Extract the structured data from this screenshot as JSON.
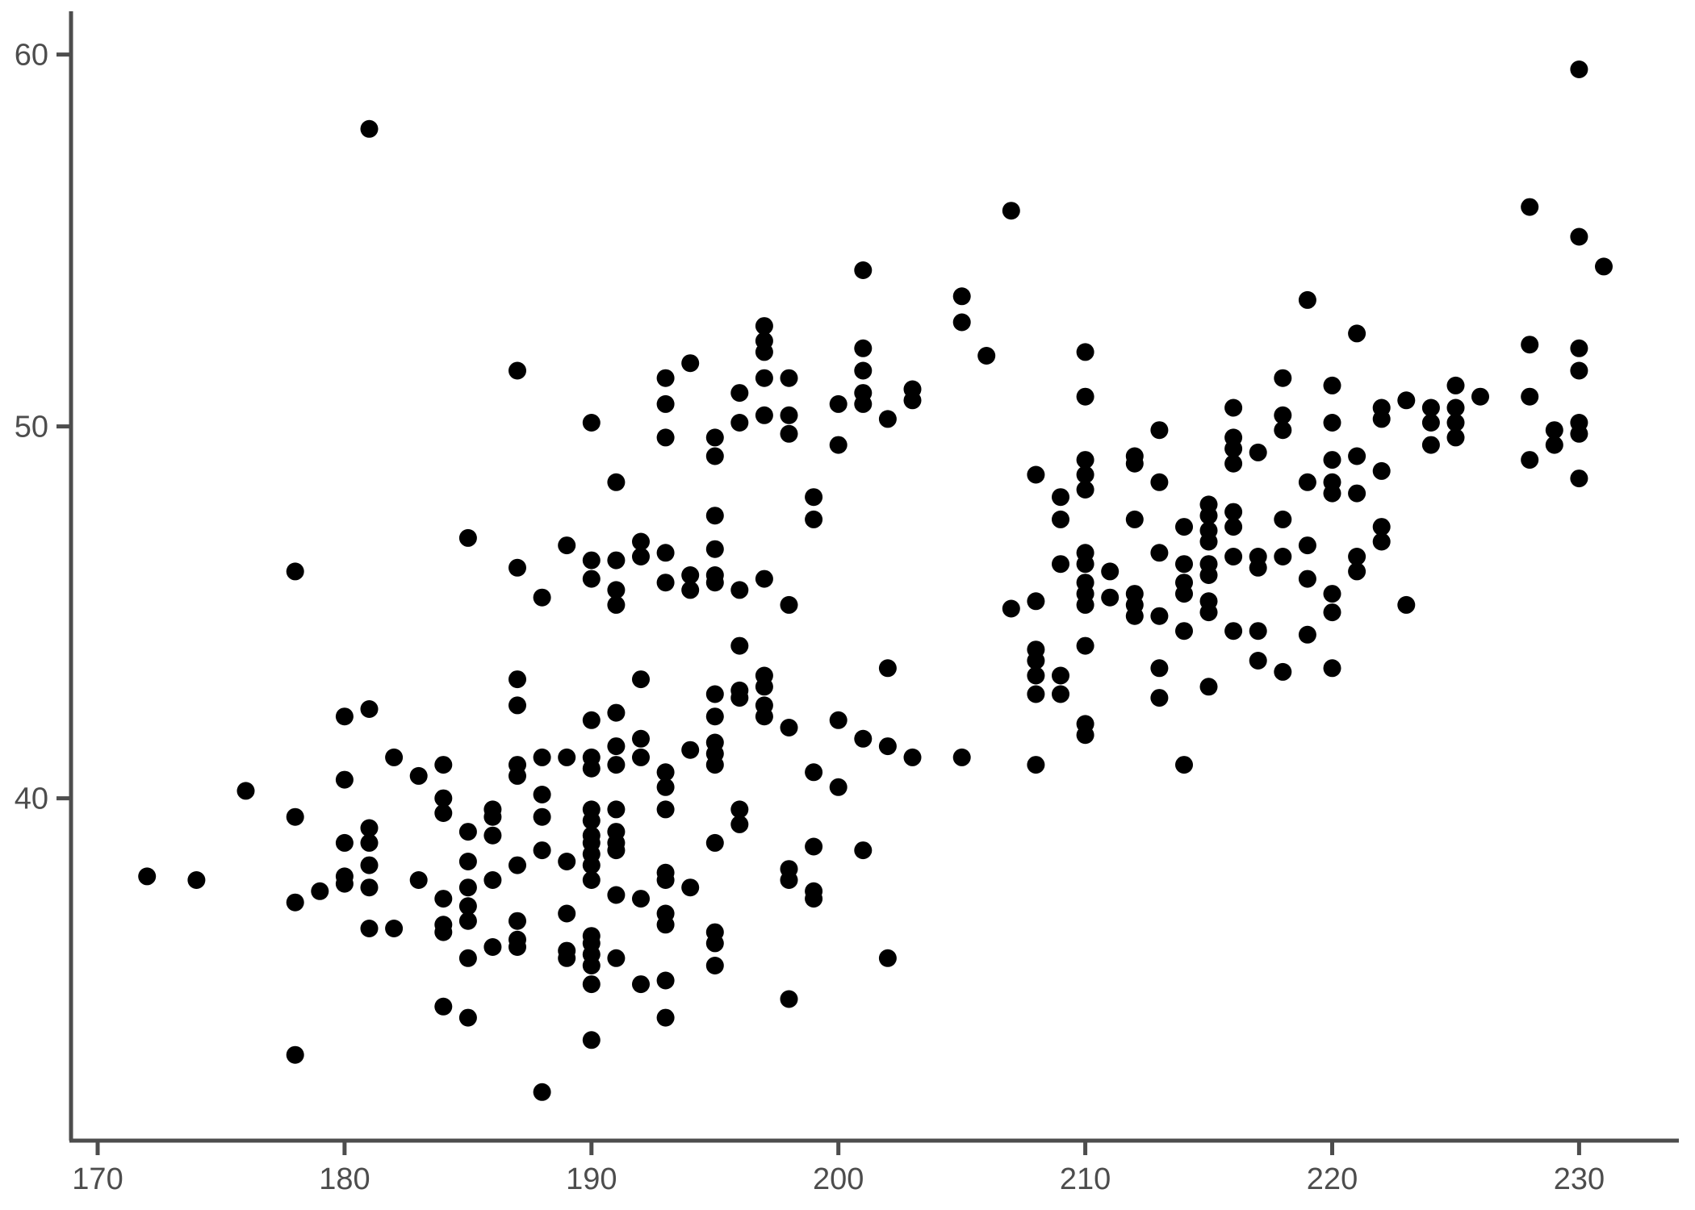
{
  "chart_data": {
    "type": "scatter",
    "title": "",
    "subtitle": "",
    "xlabel": "",
    "ylabel": "",
    "legend": null,
    "grid": false,
    "background_color": "#ffffff",
    "point_color": "#000000",
    "point_radius_px": 11,
    "axis_line_color": "#4d4d4d",
    "tick_label_color": "#4d4d4d",
    "x_axis": {
      "ticks": [
        170,
        180,
        190,
        200,
        210,
        220,
        230
      ],
      "range": [
        168.9,
        234.0
      ]
    },
    "y_axis": {
      "ticks": [
        40,
        50,
        60
      ],
      "range": [
        31.0,
        61.1
      ]
    },
    "points": [
      [
        172,
        37.9
      ],
      [
        174,
        37.8
      ],
      [
        176,
        40.2
      ],
      [
        178,
        46.1
      ],
      [
        178,
        39.5
      ],
      [
        178,
        37.2
      ],
      [
        178,
        33.1
      ],
      [
        179,
        37.5
      ],
      [
        180,
        42.2
      ],
      [
        180,
        40.5
      ],
      [
        180,
        38.8
      ],
      [
        180,
        37.9
      ],
      [
        180,
        37.7
      ],
      [
        181,
        58.0
      ],
      [
        181,
        42.4
      ],
      [
        181,
        39.2
      ],
      [
        181,
        38.8
      ],
      [
        181,
        38.2
      ],
      [
        181,
        37.6
      ],
      [
        181,
        36.5
      ],
      [
        182,
        41.1
      ],
      [
        182,
        36.5
      ],
      [
        183,
        40.6
      ],
      [
        183,
        37.8
      ],
      [
        184,
        40.9
      ],
      [
        184,
        40.0
      ],
      [
        184,
        39.6
      ],
      [
        184,
        37.3
      ],
      [
        184,
        36.6
      ],
      [
        184,
        36.4
      ],
      [
        184,
        34.4
      ],
      [
        185,
        47.0
      ],
      [
        185,
        39.1
      ],
      [
        185,
        38.3
      ],
      [
        185,
        37.6
      ],
      [
        185,
        37.1
      ],
      [
        185,
        36.7
      ],
      [
        185,
        35.7
      ],
      [
        185,
        34.1
      ],
      [
        186,
        39.7
      ],
      [
        186,
        39.5
      ],
      [
        186,
        39.0
      ],
      [
        186,
        37.8
      ],
      [
        186,
        36.0
      ],
      [
        187,
        51.5
      ],
      [
        187,
        46.2
      ],
      [
        187,
        43.2
      ],
      [
        187,
        42.5
      ],
      [
        187,
        40.9
      ],
      [
        187,
        40.6
      ],
      [
        187,
        38.2
      ],
      [
        187,
        36.7
      ],
      [
        187,
        36.2
      ],
      [
        187,
        36.0
      ],
      [
        188,
        45.4
      ],
      [
        188,
        41.1
      ],
      [
        188,
        40.1
      ],
      [
        188,
        39.5
      ],
      [
        188,
        38.6
      ],
      [
        188,
        32.1
      ],
      [
        189,
        46.8
      ],
      [
        189,
        41.1
      ],
      [
        189,
        38.3
      ],
      [
        189,
        36.9
      ],
      [
        189,
        35.9
      ],
      [
        189,
        35.7
      ],
      [
        190,
        50.1
      ],
      [
        190,
        46.4
      ],
      [
        190,
        45.9
      ],
      [
        190,
        42.1
      ],
      [
        190,
        41.1
      ],
      [
        190,
        40.8
      ],
      [
        190,
        39.7
      ],
      [
        190,
        39.4
      ],
      [
        190,
        39.0
      ],
      [
        190,
        38.8
      ],
      [
        190,
        38.5
      ],
      [
        190,
        38.2
      ],
      [
        190,
        37.8
      ],
      [
        190,
        36.3
      ],
      [
        190,
        36.1
      ],
      [
        190,
        35.8
      ],
      [
        190,
        35.5
      ],
      [
        190,
        35.0
      ],
      [
        190,
        33.5
      ],
      [
        191,
        48.5
      ],
      [
        191,
        46.4
      ],
      [
        191,
        45.6
      ],
      [
        191,
        45.2
      ],
      [
        191,
        42.3
      ],
      [
        191,
        41.4
      ],
      [
        191,
        40.9
      ],
      [
        191,
        39.7
      ],
      [
        191,
        39.1
      ],
      [
        191,
        38.8
      ],
      [
        191,
        38.6
      ],
      [
        191,
        37.4
      ],
      [
        191,
        35.7
      ],
      [
        192,
        46.9
      ],
      [
        192,
        46.5
      ],
      [
        192,
        43.2
      ],
      [
        192,
        41.6
      ],
      [
        192,
        41.1
      ],
      [
        192,
        37.3
      ],
      [
        192,
        35.0
      ],
      [
        193,
        51.3
      ],
      [
        193,
        50.6
      ],
      [
        193,
        49.7
      ],
      [
        193,
        46.6
      ],
      [
        193,
        45.8
      ],
      [
        193,
        40.7
      ],
      [
        193,
        40.3
      ],
      [
        193,
        39.7
      ],
      [
        193,
        38.0
      ],
      [
        193,
        37.8
      ],
      [
        193,
        36.9
      ],
      [
        193,
        36.6
      ],
      [
        193,
        35.1
      ],
      [
        193,
        34.1
      ],
      [
        194,
        51.7
      ],
      [
        194,
        46.0
      ],
      [
        194,
        45.6
      ],
      [
        194,
        41.3
      ],
      [
        194,
        37.6
      ],
      [
        195,
        49.7
      ],
      [
        195,
        49.2
      ],
      [
        195,
        47.6
      ],
      [
        195,
        46.7
      ],
      [
        195,
        46.0
      ],
      [
        195,
        45.8
      ],
      [
        195,
        42.8
      ],
      [
        195,
        42.2
      ],
      [
        195,
        41.5
      ],
      [
        195,
        41.2
      ],
      [
        195,
        40.9
      ],
      [
        195,
        38.8
      ],
      [
        195,
        36.4
      ],
      [
        195,
        36.1
      ],
      [
        195,
        35.5
      ],
      [
        196,
        50.9
      ],
      [
        196,
        50.1
      ],
      [
        196,
        45.6
      ],
      [
        196,
        44.1
      ],
      [
        196,
        42.9
      ],
      [
        196,
        42.7
      ],
      [
        196,
        39.7
      ],
      [
        196,
        39.3
      ],
      [
        197,
        52.7
      ],
      [
        197,
        52.3
      ],
      [
        197,
        52.0
      ],
      [
        197,
        51.3
      ],
      [
        197,
        50.3
      ],
      [
        197,
        45.9
      ],
      [
        197,
        43.3
      ],
      [
        197,
        43.0
      ],
      [
        197,
        42.5
      ],
      [
        197,
        42.2
      ],
      [
        198,
        51.3
      ],
      [
        198,
        50.3
      ],
      [
        198,
        49.8
      ],
      [
        198,
        45.2
      ],
      [
        198,
        41.9
      ],
      [
        198,
        38.1
      ],
      [
        198,
        37.8
      ],
      [
        198,
        34.6
      ],
      [
        199,
        48.1
      ],
      [
        199,
        47.5
      ],
      [
        199,
        40.7
      ],
      [
        199,
        38.7
      ],
      [
        199,
        37.5
      ],
      [
        199,
        37.3
      ],
      [
        200,
        50.6
      ],
      [
        200,
        49.5
      ],
      [
        200,
        42.1
      ],
      [
        200,
        40.3
      ],
      [
        201,
        54.2
      ],
      [
        201,
        52.1
      ],
      [
        201,
        51.5
      ],
      [
        201,
        50.9
      ],
      [
        201,
        50.6
      ],
      [
        201,
        41.6
      ],
      [
        201,
        38.6
      ],
      [
        202,
        50.2
      ],
      [
        202,
        43.5
      ],
      [
        202,
        41.4
      ],
      [
        202,
        35.7
      ],
      [
        203,
        51.0
      ],
      [
        203,
        50.7
      ],
      [
        203,
        41.1
      ],
      [
        205,
        53.5
      ],
      [
        205,
        52.8
      ],
      [
        205,
        41.1
      ],
      [
        206,
        51.9
      ],
      [
        207,
        55.8
      ],
      [
        207,
        45.1
      ],
      [
        208,
        48.7
      ],
      [
        208,
        45.3
      ],
      [
        208,
        44.0
      ],
      [
        208,
        43.7
      ],
      [
        208,
        43.3
      ],
      [
        208,
        42.8
      ],
      [
        208,
        40.9
      ],
      [
        209,
        48.1
      ],
      [
        209,
        47.5
      ],
      [
        209,
        46.3
      ],
      [
        209,
        43.3
      ],
      [
        209,
        42.8
      ],
      [
        210,
        52.0
      ],
      [
        210,
        50.8
      ],
      [
        210,
        49.1
      ],
      [
        210,
        48.7
      ],
      [
        210,
        48.3
      ],
      [
        210,
        46.6
      ],
      [
        210,
        46.3
      ],
      [
        210,
        45.8
      ],
      [
        210,
        45.5
      ],
      [
        210,
        45.2
      ],
      [
        210,
        44.1
      ],
      [
        210,
        42.0
      ],
      [
        210,
        41.7
      ],
      [
        211,
        46.1
      ],
      [
        211,
        45.4
      ],
      [
        212,
        49.2
      ],
      [
        212,
        49.0
      ],
      [
        212,
        47.5
      ],
      [
        212,
        45.5
      ],
      [
        212,
        45.2
      ],
      [
        212,
        44.9
      ],
      [
        213,
        49.9
      ],
      [
        213,
        48.5
      ],
      [
        213,
        46.6
      ],
      [
        213,
        44.9
      ],
      [
        213,
        43.5
      ],
      [
        213,
        42.7
      ],
      [
        214,
        47.3
      ],
      [
        214,
        46.3
      ],
      [
        214,
        45.8
      ],
      [
        214,
        45.5
      ],
      [
        214,
        44.5
      ],
      [
        214,
        40.9
      ],
      [
        215,
        47.9
      ],
      [
        215,
        47.6
      ],
      [
        215,
        47.2
      ],
      [
        215,
        46.9
      ],
      [
        215,
        46.3
      ],
      [
        215,
        46.0
      ],
      [
        215,
        45.3
      ],
      [
        215,
        45.0
      ],
      [
        215,
        43.0
      ],
      [
        216,
        50.5
      ],
      [
        216,
        49.7
      ],
      [
        216,
        49.4
      ],
      [
        216,
        49.0
      ],
      [
        216,
        47.7
      ],
      [
        216,
        47.3
      ],
      [
        216,
        46.5
      ],
      [
        216,
        44.5
      ],
      [
        217,
        49.3
      ],
      [
        217,
        46.5
      ],
      [
        217,
        46.2
      ],
      [
        217,
        44.5
      ],
      [
        217,
        43.7
      ],
      [
        218,
        51.3
      ],
      [
        218,
        50.3
      ],
      [
        218,
        49.9
      ],
      [
        218,
        47.5
      ],
      [
        218,
        46.5
      ],
      [
        218,
        43.4
      ],
      [
        219,
        53.4
      ],
      [
        219,
        48.5
      ],
      [
        219,
        46.8
      ],
      [
        219,
        45.9
      ],
      [
        219,
        44.4
      ],
      [
        220,
        51.1
      ],
      [
        220,
        50.1
      ],
      [
        220,
        49.1
      ],
      [
        220,
        48.5
      ],
      [
        220,
        48.2
      ],
      [
        220,
        45.5
      ],
      [
        220,
        45.0
      ],
      [
        220,
        43.5
      ],
      [
        221,
        52.5
      ],
      [
        221,
        49.2
      ],
      [
        221,
        48.2
      ],
      [
        221,
        46.5
      ],
      [
        221,
        46.1
      ],
      [
        222,
        50.5
      ],
      [
        222,
        50.2
      ],
      [
        222,
        48.8
      ],
      [
        222,
        47.3
      ],
      [
        222,
        46.9
      ],
      [
        223,
        50.7
      ],
      [
        223,
        45.2
      ],
      [
        224,
        50.5
      ],
      [
        224,
        50.1
      ],
      [
        224,
        49.5
      ],
      [
        225,
        51.1
      ],
      [
        225,
        50.5
      ],
      [
        225,
        50.1
      ],
      [
        225,
        49.7
      ],
      [
        226,
        50.8
      ],
      [
        228,
        55.9
      ],
      [
        228,
        52.2
      ],
      [
        228,
        50.8
      ],
      [
        228,
        49.1
      ],
      [
        229,
        49.9
      ],
      [
        229,
        49.5
      ],
      [
        230,
        59.6
      ],
      [
        230,
        55.1
      ],
      [
        230,
        52.1
      ],
      [
        230,
        51.5
      ],
      [
        230,
        50.1
      ],
      [
        230,
        49.8
      ],
      [
        230,
        48.6
      ],
      [
        231,
        54.3
      ]
    ]
  }
}
